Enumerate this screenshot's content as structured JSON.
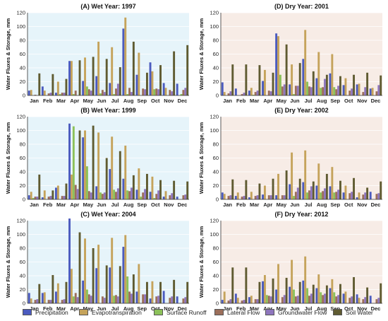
{
  "chart_data": [
    {
      "type": "bar",
      "title": "(A) Wet Year: 1997",
      "ylabel": "Water Fluxes & Storage, mm",
      "categories": [
        "Jan",
        "Feb",
        "Mar",
        "Apr",
        "May",
        "Jun",
        "Jul",
        "Aug",
        "Sep",
        "Oct",
        "Nov",
        "Dec"
      ],
      "ylim": [
        0,
        120
      ],
      "yticks": [
        0,
        20,
        40,
        60,
        80,
        100,
        120
      ],
      "background": "#e6f4fa",
      "series": [
        {
          "name": "Precipitation",
          "values": [
            7,
            13,
            4,
            50,
            21,
            28,
            18,
            97,
            30,
            48,
            18,
            17
          ]
        },
        {
          "name": "Evapotranspiration",
          "values": [
            8,
            7,
            20,
            50,
            55,
            78,
            70,
            113,
            62,
            35,
            11,
            0
          ]
        },
        {
          "name": "Surface Runoff",
          "values": [
            0,
            0,
            2,
            2,
            13,
            3,
            2,
            2,
            0,
            9,
            0,
            2
          ]
        },
        {
          "name": "Lateral Flow",
          "values": [
            1,
            3,
            4,
            7,
            9,
            8,
            10,
            11,
            10,
            10,
            8,
            8
          ]
        },
        {
          "name": "Groundwater Flow",
          "values": [
            0,
            4,
            4,
            0,
            7,
            5,
            17,
            5,
            9,
            9,
            6,
            11
          ]
        },
        {
          "name": "Soil Water",
          "values": [
            32,
            31,
            24,
            51,
            56,
            53,
            41,
            78,
            33,
            44,
            64,
            73
          ]
        }
      ]
    },
    {
      "type": "bar",
      "title": "(D) Dry Year: 2001",
      "ylabel": "Water Fluxes & Storage, mm",
      "categories": [
        "Jan",
        "Feb",
        "Mar",
        "Apr",
        "May",
        "Jun",
        "Jul",
        "Aug",
        "Sep",
        "Oct",
        "Nov",
        "Dec"
      ],
      "ylim": [
        0,
        120
      ],
      "yticks": [
        0,
        20,
        40,
        60,
        80,
        100,
        120
      ],
      "background": "#f7ece6",
      "series": [
        {
          "name": "Precipitation",
          "values": [
            19,
            10,
            7,
            21,
            90,
            16,
            53,
            25,
            32,
            15,
            16,
            10
          ]
        },
        {
          "name": "Evapotranspiration",
          "values": [
            5,
            0,
            11,
            37,
            86,
            45,
            95,
            63,
            60,
            25,
            17,
            11
          ]
        },
        {
          "name": "Surface Runoff",
          "values": [
            0,
            0,
            1,
            0,
            30,
            2,
            20,
            11,
            12,
            0,
            0,
            0
          ]
        },
        {
          "name": "Lateral Flow",
          "values": [
            3,
            2,
            5,
            7,
            13,
            14,
            13,
            12,
            9,
            7,
            5,
            6
          ]
        },
        {
          "name": "Groundwater Flow",
          "values": [
            6,
            4,
            7,
            6,
            16,
            14,
            12,
            24,
            14,
            10,
            12,
            15
          ]
        },
        {
          "name": "Soil Water",
          "values": [
            45,
            45,
            44,
            33,
            74,
            47,
            35,
            30,
            28,
            30,
            33,
            29
          ]
        }
      ]
    },
    {
      "type": "bar",
      "title": "(B) Wet Year: 1999",
      "ylabel": "Water Fluxes & Storage, mm",
      "categories": [
        "Jan",
        "Feb",
        "Mar",
        "Apr",
        "May",
        "Jun",
        "Jul",
        "Aug",
        "Sep",
        "Oct",
        "Nov",
        "Dec"
      ],
      "ylim": [
        0,
        120
      ],
      "yticks": [
        0,
        20,
        40,
        60,
        80,
        100,
        120
      ],
      "background": "#e6f4fa",
      "series": [
        {
          "name": "Precipitation",
          "values": [
            6,
            3,
            17,
            110,
            90,
            19,
            44,
            30,
            14,
            11,
            4,
            4
          ]
        },
        {
          "name": "Evapotranspiration",
          "values": [
            11,
            13,
            20,
            36,
            100,
            97,
            91,
            78,
            45,
            33,
            12,
            0
          ]
        },
        {
          "name": "Surface Runoff",
          "values": [
            2,
            0,
            0,
            106,
            48,
            10,
            14,
            13,
            4,
            2,
            0,
            0
          ]
        },
        {
          "name": "Lateral Flow",
          "values": [
            4,
            4,
            5,
            21,
            12,
            8,
            11,
            12,
            10,
            8,
            6,
            6
          ]
        },
        {
          "name": "Groundwater Flow",
          "values": [
            4,
            5,
            5,
            15,
            10,
            10,
            16,
            17,
            15,
            13,
            9,
            7
          ]
        },
        {
          "name": "Soil Water",
          "values": [
            36,
            13,
            23,
            100,
            107,
            60,
            70,
            35,
            37,
            28,
            27,
            26
          ]
        }
      ]
    },
    {
      "type": "bar",
      "title": "(E) Dry Year: 2002",
      "ylabel": "Water Fluxes & Storage, mm",
      "categories": [
        "Jan",
        "Feb",
        "Mar",
        "Apr",
        "May",
        "Jun",
        "Jul",
        "Aug",
        "Sep",
        "Oct",
        "Nov",
        "Dec"
      ],
      "ylim": [
        0,
        120
      ],
      "yticks": [
        0,
        20,
        40,
        60,
        80,
        100,
        120
      ],
      "background": "#f7ece6",
      "series": [
        {
          "name": "Precipitation",
          "values": [
            10,
            5,
            3,
            7,
            6,
            22,
            25,
            20,
            19,
            10,
            3,
            11
          ]
        },
        {
          "name": "Evapotranspiration",
          "values": [
            8,
            10,
            11,
            20,
            37,
            68,
            71,
            52,
            47,
            20,
            10,
            0
          ]
        },
        {
          "name": "Surface Runoff",
          "values": [
            0,
            0,
            0,
            0,
            0,
            5,
            10,
            10,
            10,
            0,
            0,
            0
          ]
        },
        {
          "name": "Lateral Flow",
          "values": [
            5,
            4,
            5,
            6,
            6,
            11,
            13,
            12,
            11,
            9,
            7,
            8
          ]
        },
        {
          "name": "Groundwater Flow",
          "values": [
            6,
            5,
            6,
            6,
            6,
            17,
            19,
            16,
            14,
            11,
            10,
            9
          ]
        },
        {
          "name": "Soil Water",
          "values": [
            29,
            28,
            23,
            30,
            42,
            30,
            26,
            37,
            27,
            31,
            17,
            26
          ]
        }
      ]
    },
    {
      "type": "bar",
      "title": "(C) Wet Year: 2004",
      "ylabel": "Water Fluxes & Storage, mm",
      "categories": [
        "Jan",
        "Feb",
        "Mar",
        "Apr",
        "May",
        "Jun",
        "Jul",
        "Aug",
        "Sep",
        "Oct",
        "Nov",
        "Dec"
      ],
      "ylim": [
        0,
        120
      ],
      "yticks": [
        0,
        20,
        40,
        60,
        80,
        100,
        120
      ],
      "background": "#e6f4fa",
      "series": [
        {
          "name": "Precipitation",
          "values": [
            15,
            15,
            17,
            123,
            33,
            51,
            52,
            82,
            17,
            7,
            18,
            10
          ]
        },
        {
          "name": "Evapotranspiration",
          "values": [
            7,
            16,
            29,
            50,
            94,
            85,
            95,
            99,
            57,
            32,
            0,
            0
          ]
        },
        {
          "name": "Surface Runoff",
          "values": [
            0,
            0,
            0,
            10,
            20,
            0,
            11,
            39,
            0,
            0,
            0,
            0
          ]
        },
        {
          "name": "Lateral Flow",
          "values": [
            5,
            5,
            5,
            15,
            13,
            10,
            12,
            17,
            13,
            10,
            8,
            7
          ]
        },
        {
          "name": "Groundwater Flow",
          "values": [
            6,
            5,
            6,
            9,
            11,
            8,
            10,
            14,
            13,
            11,
            10,
            9
          ]
        },
        {
          "name": "Soil Water",
          "values": [
            28,
            41,
            31,
            103,
            80,
            55,
            54,
            42,
            31,
            31,
            34,
            31
          ]
        }
      ]
    },
    {
      "type": "bar",
      "title": "(F) Dry Year: 2012",
      "ylabel": "Water Fluxes & Storage, mm",
      "categories": [
        "Jan",
        "Feb",
        "Mar",
        "Apr",
        "May",
        "Jun",
        "Jul",
        "Aug",
        "Sep",
        "Oct",
        "Nov",
        "Dec"
      ],
      "ylim": [
        0,
        120
      ],
      "yticks": [
        0,
        20,
        40,
        60,
        80,
        100,
        120
      ],
      "background": "#f7ece6",
      "series": [
        {
          "name": "Precipitation",
          "values": [
            5,
            14,
            9,
            32,
            20,
            24,
            33,
            22,
            22,
            14,
            13,
            11
          ]
        },
        {
          "name": "Evapotranspiration",
          "values": [
            17,
            8,
            11,
            41,
            57,
            63,
            68,
            42,
            35,
            17,
            8,
            0
          ]
        },
        {
          "name": "Surface Runoff",
          "values": [
            0,
            0,
            0,
            12,
            0,
            20,
            22,
            16,
            16,
            0,
            0,
            0
          ]
        },
        {
          "name": "Lateral Flow",
          "values": [
            4,
            4,
            6,
            11,
            9,
            10,
            11,
            12,
            10,
            8,
            6,
            6
          ]
        },
        {
          "name": "Groundwater Flow",
          "values": [
            6,
            5,
            6,
            10,
            12,
            11,
            14,
            14,
            12,
            10,
            9,
            8
          ]
        },
        {
          "name": "Soil Water",
          "values": [
            52,
            52,
            31,
            36,
            37,
            31,
            27,
            26,
            28,
            38,
            23,
            29
          ]
        }
      ]
    }
  ],
  "legend": [
    {
      "name": "Precipitation",
      "color": "#4b5bbf"
    },
    {
      "name": "Evapotranspiration",
      "color": "#c5a35b"
    },
    {
      "name": "Surface Runoff",
      "color": "#8cc15a"
    },
    {
      "name": "Lateral Flow",
      "color": "#9c6f5b"
    },
    {
      "name": "Groundwater Flow",
      "color": "#8e76bd"
    },
    {
      "name": "Soil Water",
      "color": "#5f5b31"
    }
  ]
}
